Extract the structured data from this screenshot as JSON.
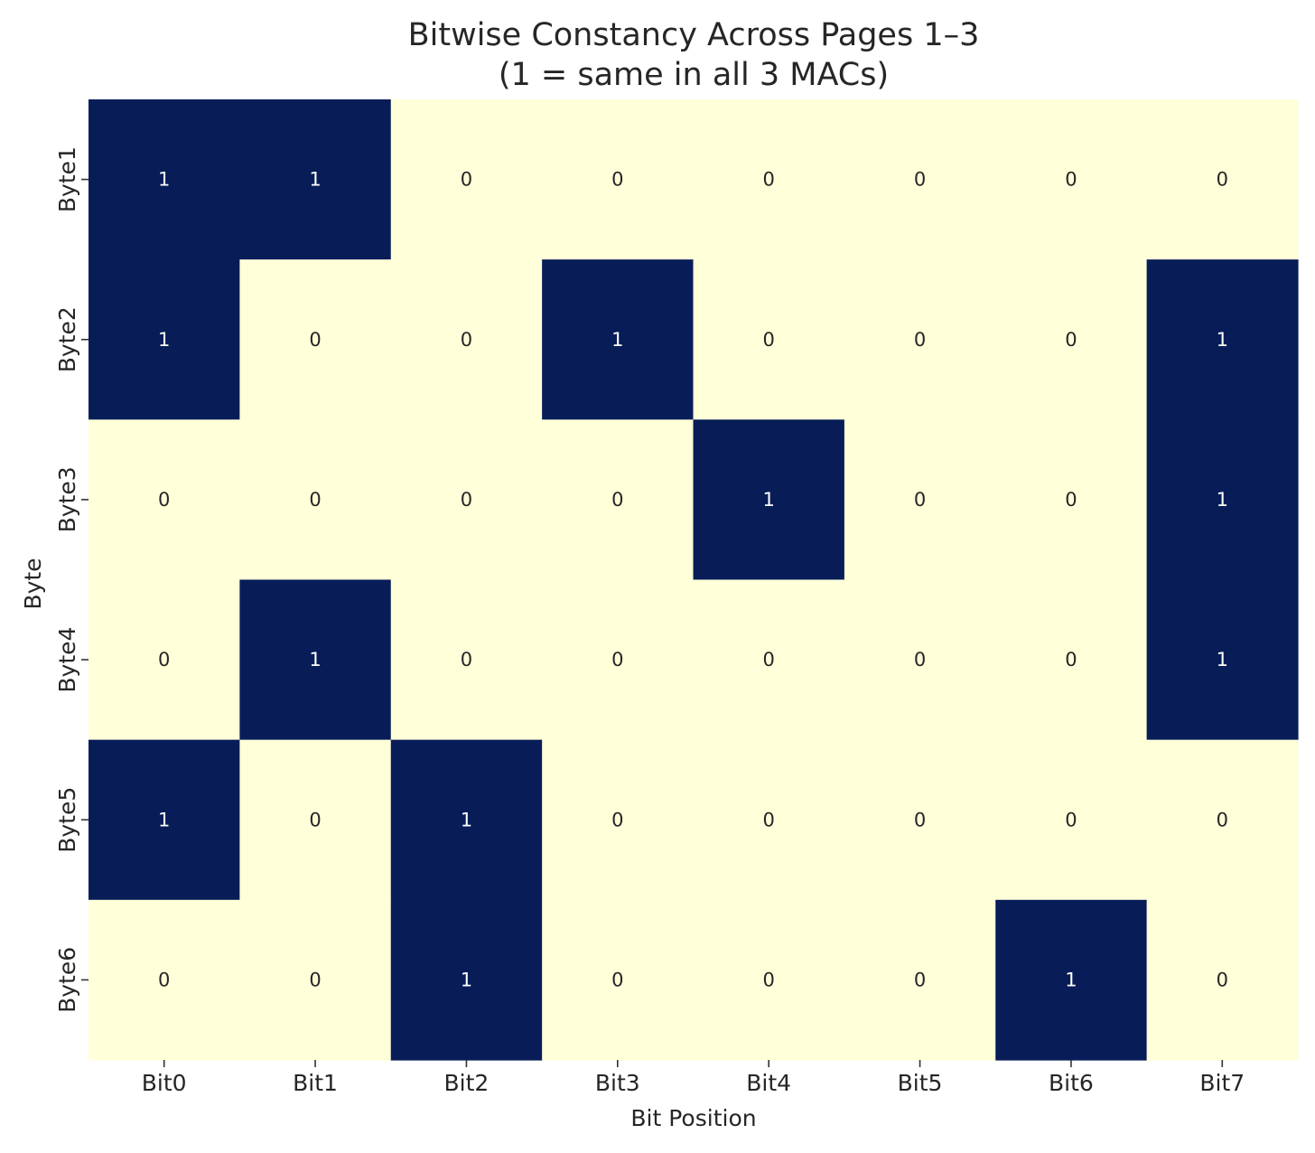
{
  "chart_data": {
    "type": "heatmap",
    "title": "Bitwise Constancy Across Pages 1–3\n(1 = same in all 3 MACs)",
    "title_lines": [
      "Bitwise Constancy Across Pages 1–3",
      "(1 = same in all 3 MACs)"
    ],
    "xlabel": "Bit Position",
    "ylabel": "Byte",
    "x_categories": [
      "Bit0",
      "Bit1",
      "Bit2",
      "Bit3",
      "Bit4",
      "Bit5",
      "Bit6",
      "Bit7"
    ],
    "y_categories": [
      "Byte1",
      "Byte2",
      "Byte3",
      "Byte4",
      "Byte5",
      "Byte6"
    ],
    "values": [
      [
        1,
        1,
        0,
        0,
        0,
        0,
        0,
        0
      ],
      [
        1,
        0,
        0,
        1,
        0,
        0,
        0,
        1
      ],
      [
        0,
        0,
        0,
        0,
        1,
        0,
        0,
        1
      ],
      [
        0,
        1,
        0,
        0,
        0,
        0,
        0,
        1
      ],
      [
        1,
        0,
        1,
        0,
        0,
        0,
        0,
        0
      ],
      [
        0,
        0,
        1,
        0,
        0,
        0,
        1,
        0
      ]
    ],
    "annotations": true,
    "colorbar": false,
    "colors": {
      "zero": "#ffffd9",
      "one": "#081d58",
      "text_on_zero": "#262626",
      "text_on_one": "#ffffff",
      "label_text": "#262626",
      "tick": "#333333"
    }
  }
}
